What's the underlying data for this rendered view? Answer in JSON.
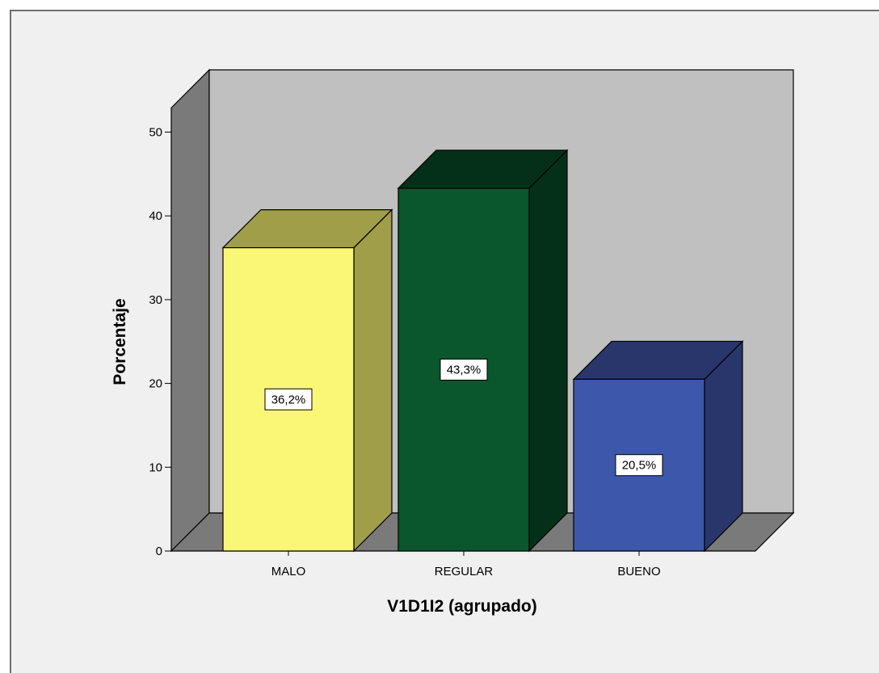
{
  "chart_data": {
    "type": "bar",
    "style": "3d",
    "categories": [
      "MALO",
      "REGULAR",
      "BUENO"
    ],
    "values": [
      36.2,
      43.3,
      20.5
    ],
    "data_labels": [
      "36,2%",
      "43,3%",
      "20,5%"
    ],
    "colors": {
      "MALO": {
        "front": "#fbf776",
        "side": "#a09e48",
        "top": "#a09e48"
      },
      "REGULAR": {
        "front": "#0a562d",
        "side": "#043019",
        "top": "#043019"
      },
      "BUENO": {
        "front": "#3d58aa",
        "side": "#28366c",
        "top": "#28366c"
      }
    },
    "xlabel": "V1D1I2 (agrupado)",
    "ylabel": "Porcentaje",
    "ylim": [
      0,
      50
    ],
    "yticks": [
      0,
      10,
      20,
      30,
      40,
      50
    ],
    "background": {
      "frame": "#f0f0f0",
      "back_wall": "#c0c0c0",
      "side_wall": "#7a7a7a",
      "floor": "#7a7a7a"
    }
  }
}
